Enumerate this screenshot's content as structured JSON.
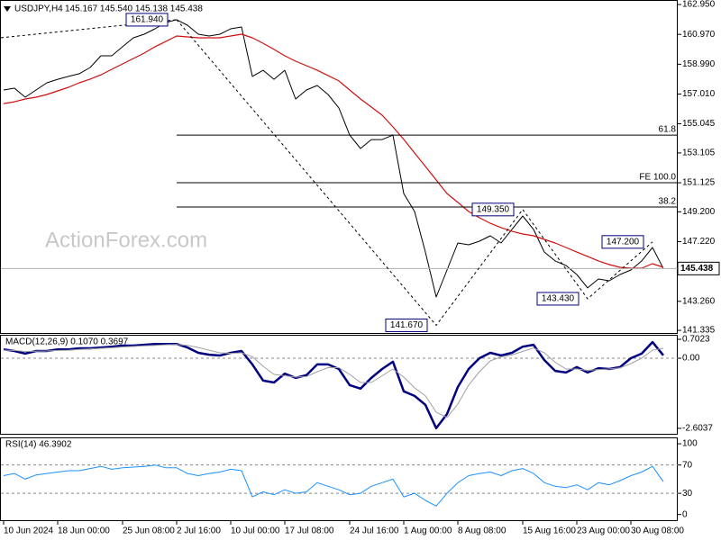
{
  "chart_data": [
    {
      "type": "line",
      "title": "USDJPY,H4",
      "subtitle": "145.167 145.540 145.138 145.438",
      "watermark": "ActionForex.com",
      "categories": [
        "10 Jun 2024",
        null,
        null,
        null,
        null,
        "18 Jun 00:00",
        null,
        null,
        null,
        null,
        null,
        "25 Jun 08:00",
        null,
        null,
        null,
        null,
        "2 Jul 16:00",
        null,
        null,
        null,
        null,
        "10 Jul 00:00",
        null,
        null,
        null,
        null,
        "17 Jul 08:00",
        null,
        null,
        null,
        null,
        null,
        "24 Jul 16:00",
        null,
        null,
        null,
        null,
        "1 Aug 00:00",
        null,
        null,
        null,
        null,
        "8 Aug 08:00",
        null,
        null,
        null,
        null,
        null,
        "15 Aug 16:00",
        null,
        null,
        null,
        null,
        "23 Aug 00:00",
        null,
        null,
        null,
        null,
        "30 Aug 08:00",
        null,
        null,
        null
      ],
      "series": [
        {
          "color": "#000000",
          "values": [
            157.28,
            157.4,
            156.8,
            157.28,
            157.76,
            157.99,
            158.18,
            158.36,
            158.77,
            159.55,
            159.55,
            160.15,
            160.74,
            160.98,
            161.34,
            161.76,
            161.94,
            161.58,
            160.98,
            160.86,
            160.98,
            161.34,
            161.46,
            158.18,
            158.59,
            157.99,
            158.59,
            156.68,
            157.28,
            157.58,
            156.98,
            156.09,
            154.29,
            153.4,
            153.99,
            153.99,
            154.29,
            150.41,
            149.22,
            146.53,
            143.55,
            145.34,
            147.13,
            147.01,
            147.25,
            147.61,
            147.13,
            148.03,
            148.92,
            148.03,
            146.53,
            145.94,
            145.64,
            145.04,
            144.15,
            144.74,
            144.62,
            145.04,
            145.34,
            145.94,
            146.83,
            145.438
          ]
        },
        {
          "color": "#d01010",
          "values": [
            156.38,
            156.5,
            156.68,
            156.8,
            156.98,
            157.22,
            157.46,
            157.76,
            158.0,
            158.29,
            158.65,
            159.01,
            159.37,
            159.73,
            160.15,
            160.5,
            160.86,
            160.8,
            160.74,
            160.74,
            160.74,
            160.86,
            160.98,
            160.74,
            160.38,
            159.97,
            159.55,
            159.19,
            158.89,
            158.59,
            158.24,
            157.88,
            157.28,
            156.68,
            156.15,
            155.61,
            154.83,
            154.0,
            153.1,
            152.21,
            151.31,
            150.41,
            149.82,
            149.22,
            148.8,
            148.44,
            148.15,
            147.91,
            147.73,
            147.61,
            147.37,
            147.13,
            146.83,
            146.53,
            146.24,
            145.94,
            145.7,
            145.52,
            145.46,
            145.46,
            145.76,
            145.52
          ]
        }
      ],
      "ylim": [
        141.16,
        163.25
      ],
      "yticks": [
        {
          "value": 162.95,
          "label": "162.950"
        },
        {
          "value": 160.97,
          "label": "160.970"
        },
        {
          "value": 158.99,
          "label": "158.990"
        },
        {
          "value": 157.01,
          "label": "157.010"
        },
        155.045,
        153.105,
        151.125,
        {
          "value": 149.2,
          "label": "149.200"
        },
        {
          "value": 147.22,
          "label": "147.220"
        },
        {
          "value": 143.26,
          "label": "143.260"
        },
        141.335
      ],
      "last_price": 145.438,
      "pivots": [
        {
          "value": 161.94,
          "label": "161.940",
          "at": 16
        },
        {
          "value": 141.67,
          "label": "141.670",
          "at": 40
        },
        {
          "value": 149.35,
          "label": "149.350",
          "at": 48
        },
        {
          "value": 143.43,
          "label": "143.430",
          "at": 54
        },
        {
          "value": 147.2,
          "label": "147.200",
          "at": 60
        }
      ],
      "levels": [
        {
          "label": "61.8",
          "price": 154.29
        },
        {
          "label": "FE 100.0",
          "price": 151.13
        },
        {
          "label": "38.2",
          "price": 149.52
        }
      ]
    },
    {
      "type": "line",
      "title": "MACD(12,26,9) 0.1070 0.3697",
      "series": [
        {
          "color": "#000080",
          "values": [
            0.33,
            0.27,
            0.17,
            0.27,
            0.27,
            0.33,
            0.33,
            0.37,
            0.37,
            0.4,
            0.43,
            0.47,
            0.47,
            0.5,
            0.53,
            0.53,
            0.53,
            0.4,
            0.2,
            0.13,
            0.1,
            0.2,
            0.27,
            -0.23,
            -0.83,
            -0.9,
            -0.57,
            -0.73,
            -0.63,
            -0.23,
            -0.23,
            -0.4,
            -1.0,
            -1.13,
            -0.73,
            -0.4,
            -0.13,
            -1.23,
            -1.4,
            -1.73,
            -2.6,
            -2.07,
            -1.07,
            -0.4,
            0.0,
            0.2,
            0.1,
            0.2,
            0.43,
            0.5,
            -0.07,
            -0.47,
            -0.53,
            -0.33,
            -0.53,
            -0.37,
            -0.4,
            -0.33,
            0.0,
            0.17,
            0.6,
            0.107
          ]
        },
        {
          "color": "#a0a0a0",
          "values": [
            0.3,
            0.29,
            0.25,
            0.26,
            0.27,
            0.29,
            0.3,
            0.33,
            0.35,
            0.37,
            0.39,
            0.42,
            0.44,
            0.46,
            0.48,
            0.5,
            0.51,
            0.48,
            0.4,
            0.3,
            0.2,
            0.18,
            0.2,
            0.05,
            -0.3,
            -0.6,
            -0.65,
            -0.7,
            -0.68,
            -0.5,
            -0.35,
            -0.35,
            -0.6,
            -0.9,
            -0.9,
            -0.65,
            -0.4,
            -0.7,
            -1.1,
            -1.4,
            -2.0,
            -2.2,
            -1.7,
            -1.0,
            -0.5,
            -0.1,
            0.05,
            0.12,
            0.25,
            0.38,
            0.2,
            -0.15,
            -0.4,
            -0.4,
            -0.45,
            -0.42,
            -0.4,
            -0.36,
            -0.2,
            0.0,
            0.3,
            0.3697
          ]
        }
      ],
      "ylim": [
        -2.84,
        0.87
      ],
      "yticks": [
        0.7023,
        {
          "value": 0,
          "label": "0.00"
        },
        -2.6037
      ],
      "levels": [
        0
      ]
    },
    {
      "type": "line",
      "title": "RSI(14) 46.3902",
      "series": [
        {
          "color": "#1e90ff",
          "values": [
            55,
            58,
            50,
            56,
            58,
            60,
            62,
            62,
            65,
            68,
            64,
            66,
            67,
            68,
            70,
            66,
            66,
            58,
            55,
            58,
            60,
            64,
            62,
            25,
            32,
            28,
            35,
            30,
            32,
            45,
            40,
            35,
            28,
            30,
            40,
            45,
            50,
            25,
            30,
            20,
            12,
            30,
            45,
            55,
            58,
            60,
            55,
            62,
            65,
            58,
            45,
            40,
            38,
            42,
            35,
            45,
            42,
            48,
            55,
            60,
            68,
            46.3902
          ]
        }
      ],
      "ylim": [
        -8,
        109
      ],
      "yticks": [
        100,
        70,
        30,
        0
      ],
      "levels": [
        70,
        30
      ]
    }
  ]
}
